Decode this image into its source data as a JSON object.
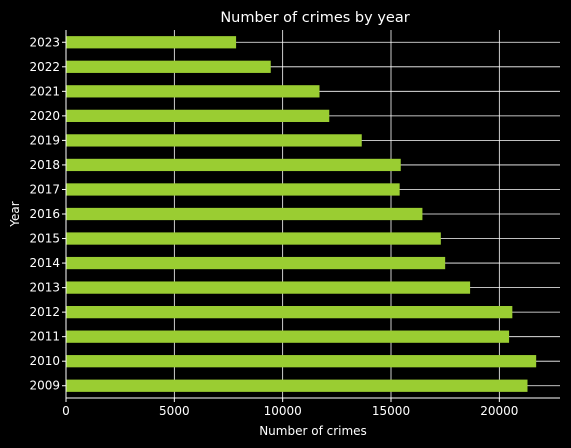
{
  "chart_data": {
    "type": "bar",
    "orientation": "horizontal",
    "title": "Number of crimes by year",
    "xlabel": "Number of crimes",
    "ylabel": "Year",
    "xlim": [
      0,
      22800
    ],
    "xticks": [
      0,
      5000,
      10000,
      15000,
      20000
    ],
    "categories": [
      "2009",
      "2010",
      "2011",
      "2012",
      "2013",
      "2014",
      "2015",
      "2016",
      "2017",
      "2018",
      "2019",
      "2020",
      "2021",
      "2022",
      "2023"
    ],
    "values": [
      21300,
      21700,
      20450,
      20600,
      18650,
      17500,
      17300,
      16450,
      15400,
      15450,
      13650,
      12150,
      11700,
      9450,
      7850
    ],
    "grid": true,
    "bar_color": "#9acd32",
    "background_color": "#000000",
    "grid_color": "#ffffff",
    "text_color": "#ffffff"
  }
}
